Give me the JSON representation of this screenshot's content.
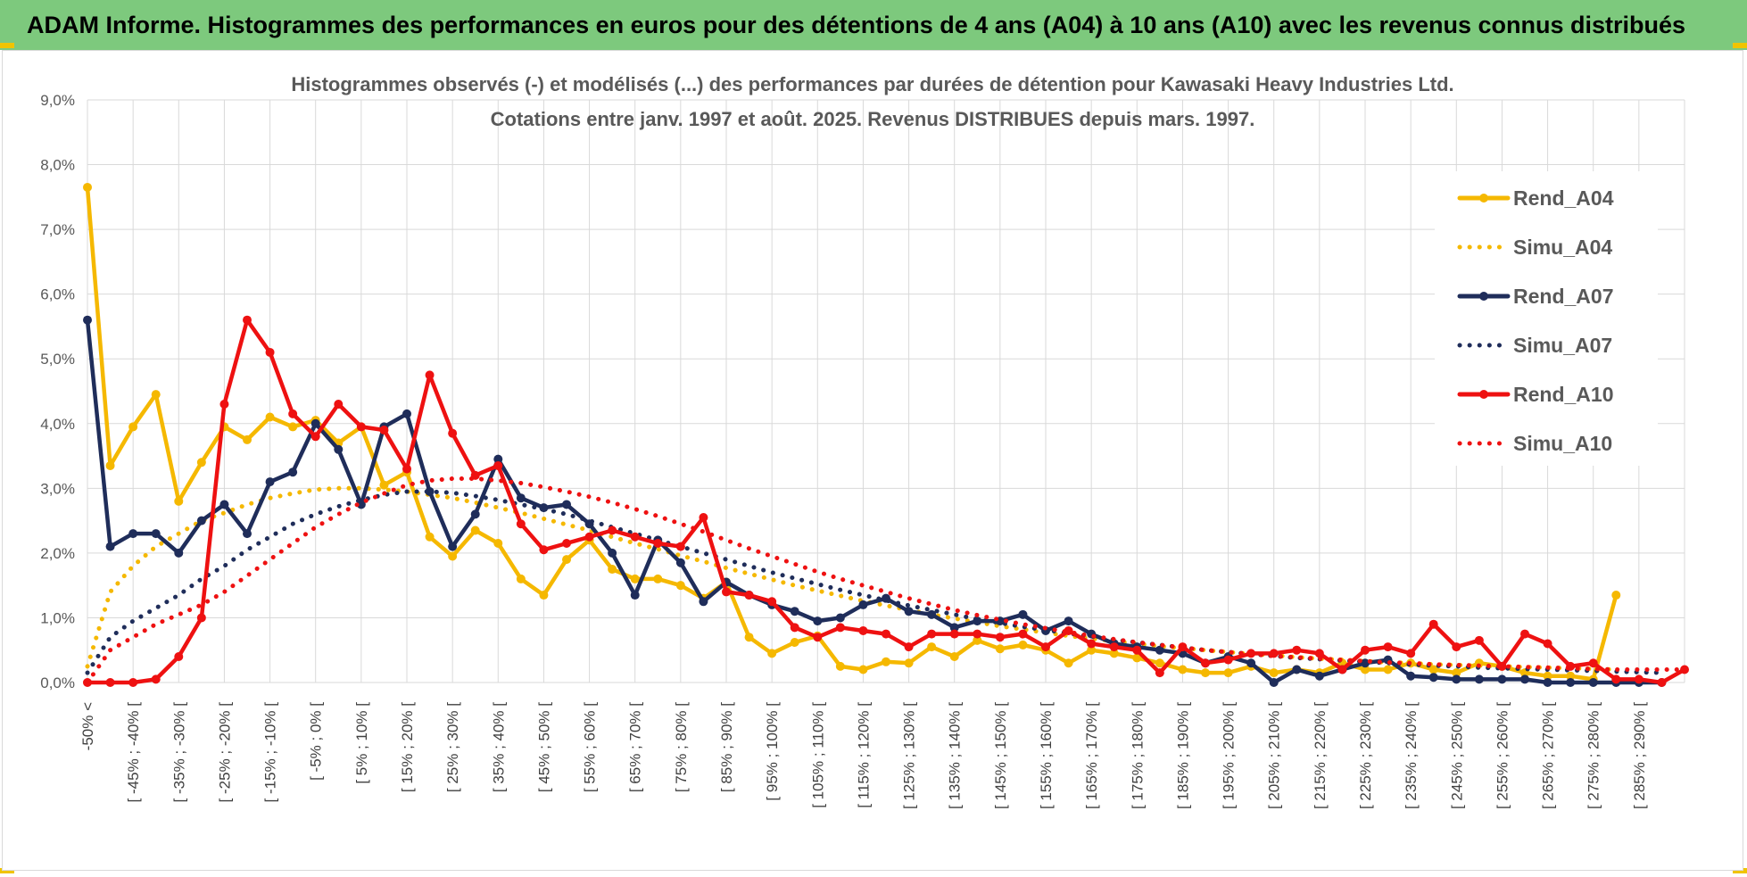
{
  "banner": {
    "title": "ADAM Informe. Histogrammes des performances en euros pour des détentions de 4 ans (A04) à 10 ans (A10) avec les revenus connus distribués",
    "background": "#7dc97d"
  },
  "chart_data": {
    "type": "line",
    "title": "Histogrammes observés (-) et modélisés (...) des performances par durées de détention pour Kawasaki Heavy Industries Ltd.",
    "subtitle": "Cotations entre janv. 1997 et août. 2025. Revenus DISTRIBUES depuis mars. 1997.",
    "xlabel": "",
    "ylabel": "",
    "ylim": [
      0,
      9
    ],
    "y_unit": "%",
    "y_ticks": [
      "0,0%",
      "1,0%",
      "2,0%",
      "3,0%",
      "4,0%",
      "5,0%",
      "6,0%",
      "7,0%",
      "8,0%",
      "9,0%"
    ],
    "x_tick_labels": [
      "-50% <",
      "[ -45% ; -40% [",
      "[ -35% ; -30% [",
      "[ -25% ; -20% [",
      "[ -15% ; -10% [",
      "[ -5% ; 0% [",
      "[ 5% ; 10% [",
      "[ 15% ; 20% [",
      "[ 25% ; 30% [",
      "[ 35% ; 40% [",
      "[ 45% ; 50% [",
      "[ 55% ; 60% [",
      "[ 65% ; 70% [",
      "[ 75% ; 80% [",
      "[ 85% ; 90% [",
      "[ 95% ; 100% [",
      "[ 105% ; 110% [",
      "[ 115% ; 120% [",
      "[ 125% ; 130% [",
      "[ 135% ; 140% [",
      "[ 145% ; 150% [",
      "[ 155% ; 160% [",
      "[ 165% ; 170% [",
      "[ 175% ; 180% [",
      "[ 185% ; 190% [",
      "[ 195% ; 200% [",
      "[ 205% ; 210% [",
      "[ 215% ; 220% [",
      "[ 225% ; 230% [",
      "[ 235% ; 240% [",
      "[ 245% ; 250% [",
      "[ 255% ; 260% [",
      "[ 265% ; 270% [",
      "[ 275% ; 280% [",
      "[ 285% ; 290% ["
    ],
    "legend_position": "top-right",
    "series": [
      {
        "name": "Rend_A04",
        "style": "solid",
        "markers": true,
        "color": "#f5b800",
        "values": [
          7.65,
          3.35,
          3.95,
          4.45,
          2.8,
          3.4,
          3.95,
          3.75,
          4.1,
          3.95,
          4.05,
          3.7,
          3.95,
          3.05,
          3.25,
          2.25,
          1.95,
          2.35,
          2.15,
          1.6,
          1.35,
          1.9,
          2.2,
          1.75,
          1.6,
          1.6,
          1.5,
          1.3,
          1.55,
          0.7,
          0.45,
          0.62,
          0.72,
          0.25,
          0.2,
          0.32,
          0.3,
          0.55,
          0.4,
          0.65,
          0.52,
          0.58,
          0.5,
          0.3,
          0.5,
          0.45,
          0.38,
          0.3,
          0.2,
          0.15,
          0.15,
          0.25,
          0.15,
          0.2,
          0.15,
          0.3,
          0.2,
          0.2,
          0.3,
          0.2,
          0.15,
          0.3,
          0.25,
          0.15,
          0.1,
          0.1,
          0.05,
          1.35
        ]
      },
      {
        "name": "Simu_A04",
        "style": "dotted",
        "markers": false,
        "color": "#f5b800",
        "values": [
          0.25,
          1.4,
          1.8,
          2.1,
          2.3,
          2.5,
          2.62,
          2.75,
          2.85,
          2.92,
          2.98,
          3.0,
          3.0,
          2.98,
          2.95,
          2.9,
          2.85,
          2.78,
          2.7,
          2.62,
          2.53,
          2.44,
          2.35,
          2.25,
          2.15,
          2.06,
          1.96,
          1.87,
          1.77,
          1.68,
          1.59,
          1.5,
          1.42,
          1.34,
          1.26,
          1.19,
          1.12,
          1.05,
          0.99,
          0.93,
          0.87,
          0.82,
          0.77,
          0.72,
          0.68,
          0.64,
          0.6,
          0.56,
          0.53,
          0.5,
          0.47,
          0.44,
          0.42,
          0.39,
          0.37,
          0.35,
          0.33,
          0.31,
          0.3,
          0.28,
          0.27,
          0.26,
          0.25,
          0.24,
          0.23,
          0.22,
          0.21,
          0.2
        ]
      },
      {
        "name": "Rend_A07",
        "style": "solid",
        "markers": true,
        "color": "#1f2d5a",
        "values": [
          5.6,
          2.1,
          2.3,
          2.3,
          2.0,
          2.5,
          2.75,
          2.3,
          3.1,
          3.25,
          4.0,
          3.6,
          2.75,
          3.95,
          4.15,
          2.95,
          2.1,
          2.6,
          3.45,
          2.85,
          2.7,
          2.75,
          2.45,
          2.0,
          1.35,
          2.2,
          1.85,
          1.25,
          1.55,
          1.35,
          1.2,
          1.1,
          0.95,
          1.0,
          1.2,
          1.3,
          1.1,
          1.05,
          0.85,
          0.95,
          0.95,
          1.05,
          0.8,
          0.95,
          0.75,
          0.6,
          0.55,
          0.5,
          0.45,
          0.3,
          0.4,
          0.3,
          0.0,
          0.2,
          0.1,
          0.2,
          0.3,
          0.35,
          0.1,
          0.08,
          0.05,
          0.05,
          0.05,
          0.05,
          0.0,
          0.0,
          0.0,
          0.0,
          0.0,
          0.0
        ]
      },
      {
        "name": "Simu_A07",
        "style": "dotted",
        "markers": false,
        "color": "#1f2d5a",
        "values": [
          0.15,
          0.7,
          0.95,
          1.15,
          1.35,
          1.6,
          1.8,
          2.05,
          2.25,
          2.45,
          2.6,
          2.72,
          2.82,
          2.9,
          2.95,
          2.95,
          2.93,
          2.88,
          2.82,
          2.75,
          2.68,
          2.6,
          2.5,
          2.4,
          2.3,
          2.2,
          2.1,
          2.0,
          1.9,
          1.8,
          1.7,
          1.61,
          1.52,
          1.43,
          1.35,
          1.27,
          1.19,
          1.12,
          1.05,
          0.98,
          0.92,
          0.86,
          0.81,
          0.76,
          0.71,
          0.66,
          0.62,
          0.58,
          0.54,
          0.5,
          0.47,
          0.44,
          0.41,
          0.38,
          0.36,
          0.34,
          0.32,
          0.3,
          0.28,
          0.26,
          0.25,
          0.23,
          0.22,
          0.21,
          0.2,
          0.19,
          0.18,
          0.17,
          0.16,
          0.15
        ]
      },
      {
        "name": "Rend_A10",
        "style": "solid",
        "markers": true,
        "color": "#ee1111",
        "values": [
          0.0,
          0.0,
          0.0,
          0.05,
          0.4,
          1.0,
          4.3,
          5.6,
          5.1,
          4.15,
          3.8,
          4.3,
          3.95,
          3.9,
          3.3,
          4.75,
          3.85,
          3.2,
          3.35,
          2.45,
          2.05,
          2.15,
          2.25,
          2.35,
          2.25,
          2.15,
          2.1,
          2.55,
          1.4,
          1.35,
          1.25,
          0.85,
          0.7,
          0.85,
          0.8,
          0.75,
          0.55,
          0.75,
          0.75,
          0.75,
          0.7,
          0.75,
          0.55,
          0.8,
          0.6,
          0.55,
          0.5,
          0.15,
          0.55,
          0.3,
          0.35,
          0.45,
          0.45,
          0.5,
          0.45,
          0.2,
          0.5,
          0.55,
          0.45,
          0.9,
          0.55,
          0.65,
          0.25,
          0.75,
          0.6,
          0.25,
          0.3,
          0.05,
          0.05,
          0.0,
          0.2
        ]
      },
      {
        "name": "Simu_A10",
        "style": "dotted",
        "markers": false,
        "color": "#ee1111",
        "values": [
          0.0,
          0.5,
          0.7,
          0.9,
          1.05,
          1.2,
          1.4,
          1.65,
          1.9,
          2.15,
          2.4,
          2.6,
          2.78,
          2.92,
          3.05,
          3.12,
          3.15,
          3.15,
          3.12,
          3.08,
          3.02,
          2.95,
          2.87,
          2.78,
          2.68,
          2.57,
          2.45,
          2.33,
          2.2,
          2.07,
          1.95,
          1.83,
          1.71,
          1.6,
          1.5,
          1.4,
          1.3,
          1.21,
          1.12,
          1.04,
          0.97,
          0.9,
          0.84,
          0.78,
          0.72,
          0.67,
          0.62,
          0.58,
          0.54,
          0.5,
          0.47,
          0.44,
          0.41,
          0.39,
          0.37,
          0.35,
          0.33,
          0.31,
          0.3,
          0.28,
          0.27,
          0.26,
          0.25,
          0.24,
          0.23,
          0.22,
          0.21,
          0.2,
          0.2,
          0.2,
          0.2
        ]
      }
    ]
  }
}
